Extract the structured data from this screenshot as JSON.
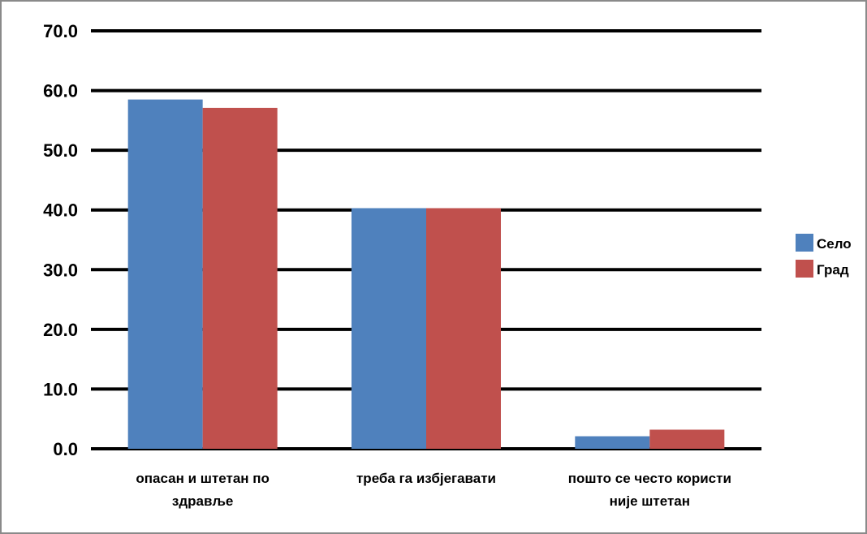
{
  "chart_data": {
    "type": "bar",
    "categories": [
      [
        "опасан и штетан по",
        "здравље"
      ],
      [
        "треба га избјегавати"
      ],
      [
        "пошто се често користи",
        "није штетан"
      ]
    ],
    "series": [
      {
        "name": "Село",
        "values": [
          58.5,
          40.3,
          2.1
        ],
        "color": "#4f81bd"
      },
      {
        "name": "Град",
        "values": [
          57.1,
          40.3,
          3.2
        ],
        "color": "#c0504d"
      }
    ],
    "ylim": [
      0,
      70
    ],
    "yticks": [
      "0.0",
      "10.0",
      "20.0",
      "30.0",
      "40.0",
      "50.0",
      "60.0",
      "70.0"
    ],
    "grid": true,
    "legend": "right",
    "title": "",
    "xlabel": "",
    "ylabel": ""
  }
}
